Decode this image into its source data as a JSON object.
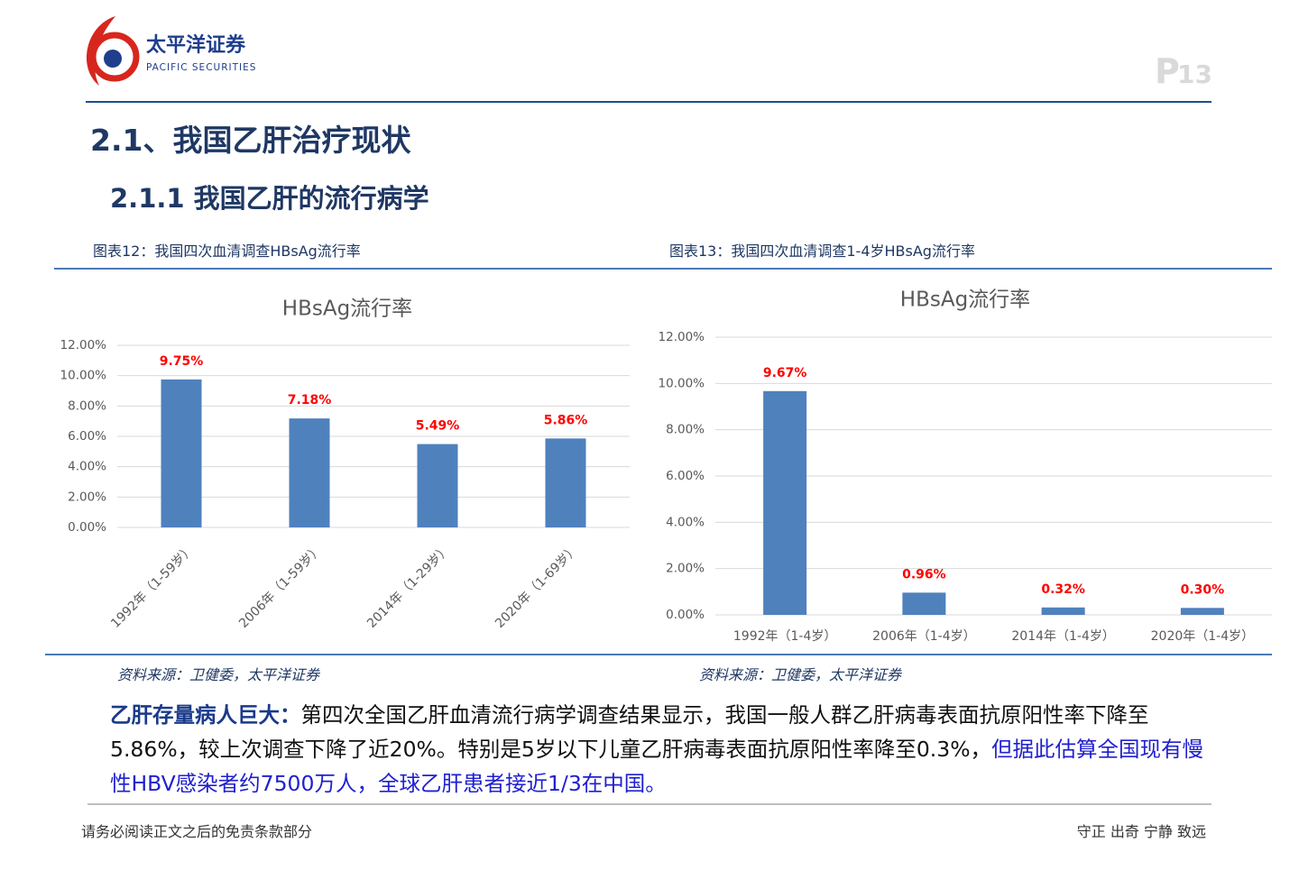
{
  "header": {
    "brand_cn": "太平洋证券",
    "brand_en": "PACIFIC SECURITIES",
    "page_prefix": "P",
    "page_number": "13"
  },
  "section_title": "2.1、我国乙肝治疗现状",
  "subsection_title": "2.1.1 我国乙肝的流行病学",
  "figure_captions": [
    "图表12：我国四次血清调查HBsAg流行率",
    "图表13：我国四次血清调查1-4岁HBsAg流行率"
  ],
  "sources": [
    "资料来源：卫健委，太平洋证券",
    "资料来源：卫健委，太平洋证券"
  ],
  "body": {
    "lead": "乙肝存量病人巨大：",
    "text": "第四次全国乙肝血清流行病学调查结果显示，我国一般人群乙肝病毒表面抗原阳性率下降至5.86%，较上次调查下降了近20%。特别是5岁以下儿童乙肝病毒表面抗原阳性率降至0.3%，",
    "highlight": "但据此估算全国现有慢性HBV感染者约7500万人，全球乙肝患者接近1/3在中国。"
  },
  "footer": {
    "left": "请务必阅读正文之后的免责条款部分",
    "right": "守正 出奇 宁静 致远"
  },
  "chart_data": [
    {
      "type": "bar",
      "title": "HBsAg流行率",
      "categories": [
        "1992年（1-59岁）",
        "2006年（1-59岁）",
        "2014年（1-29岁）",
        "2020年（1-69岁）"
      ],
      "values": [
        9.75,
        7.18,
        5.49,
        5.86
      ],
      "value_labels": [
        "9.75%",
        "7.18%",
        "5.49%",
        "5.86%"
      ],
      "color": "#4f81bd",
      "label_color": "#ff0000",
      "ylim": [
        0,
        12
      ],
      "yticks": [
        {
          "value": 0,
          "label": "0.00%"
        },
        {
          "value": 2,
          "label": "2.00%"
        },
        {
          "value": 4,
          "label": "4.00%"
        },
        {
          "value": 6,
          "label": "6.00%"
        },
        {
          "value": 8,
          "label": "8.00%"
        },
        {
          "value": 10,
          "label": "10.00%"
        },
        {
          "value": 12,
          "label": "12.00%"
        }
      ],
      "grid": true
    },
    {
      "type": "bar",
      "title": "HBsAg流行率",
      "categories": [
        "1992年（1-4岁）",
        "2006年（1-4岁）",
        "2014年（1-4岁）",
        "2020年（1-4岁）"
      ],
      "values": [
        9.67,
        0.96,
        0.32,
        0.3
      ],
      "value_labels": [
        "9.67%",
        "0.96%",
        "0.32%",
        "0.30%"
      ],
      "color": "#4f81bd",
      "label_color": "#ff0000",
      "ylim": [
        0,
        12
      ],
      "yticks": [
        {
          "value": 0,
          "label": "0.00%"
        },
        {
          "value": 2,
          "label": "2.00%"
        },
        {
          "value": 4,
          "label": "4.00%"
        },
        {
          "value": 6,
          "label": "6.00%"
        },
        {
          "value": 8,
          "label": "8.00%"
        },
        {
          "value": 10,
          "label": "10.00%"
        },
        {
          "value": 12,
          "label": "12.00%"
        }
      ],
      "grid": true
    }
  ]
}
